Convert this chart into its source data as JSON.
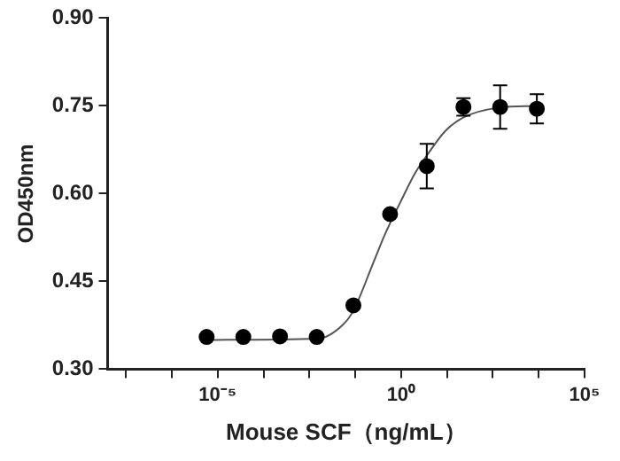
{
  "chart_data": {
    "type": "scatter",
    "xlabel": "Mouse SCF（ng/mL）",
    "ylabel": "OD450nm",
    "log": "x",
    "grid": false,
    "legend": false,
    "marker": "circle",
    "xlim": [
      1e-08,
      100000
    ],
    "xticks": [
      {
        "value": 3.16e-08,
        "label": null
      },
      {
        "value": 5.62e-07,
        "label": null
      },
      {
        "value": 1e-05,
        "label": "10⁻⁵"
      },
      {
        "value": 0.000178,
        "label": null
      },
      {
        "value": 0.00316,
        "label": null
      },
      {
        "value": 0.0562,
        "label": null
      },
      {
        "value": 1,
        "label": "10⁰"
      },
      {
        "value": 17.8,
        "label": null
      },
      {
        "value": 316,
        "label": null
      },
      {
        "value": 5620,
        "label": null
      },
      {
        "value": 100000,
        "label": "10⁵"
      }
    ],
    "ylim": [
      0.3,
      0.9
    ],
    "yticks": [
      {
        "value": 0.3,
        "label": "0.30"
      },
      {
        "value": 0.45,
        "label": "0.45"
      },
      {
        "value": 0.6,
        "label": "0.60"
      },
      {
        "value": 0.75,
        "label": "0.75"
      },
      {
        "value": 0.9,
        "label": "0.90"
      }
    ],
    "series": [
      {
        "color": "#000000",
        "x": [
          5e-06,
          5e-05,
          0.0005,
          0.005,
          0.05,
          0.5,
          5,
          50,
          500,
          5000
        ],
        "values": [
          0.355,
          0.355,
          0.356,
          0.355,
          0.409,
          0.565,
          0.647,
          0.748,
          0.748,
          0.745
        ],
        "errors": [
          null,
          null,
          null,
          null,
          null,
          null,
          0.038,
          0.015,
          0.037,
          0.025
        ]
      },
      {
        "type": "line",
        "color": "#555555",
        "marker": "none",
        "x": [
          5e-06,
          0.0052,
          0.026,
          0.05,
          0.17,
          0.36,
          1,
          2.4,
          5,
          16,
          49,
          470,
          4900
        ],
        "values": [
          0.35,
          0.352,
          0.376,
          0.4,
          0.48,
          0.53,
          0.588,
          0.635,
          0.665,
          0.707,
          0.73,
          0.747,
          0.75
        ]
      }
    ]
  }
}
